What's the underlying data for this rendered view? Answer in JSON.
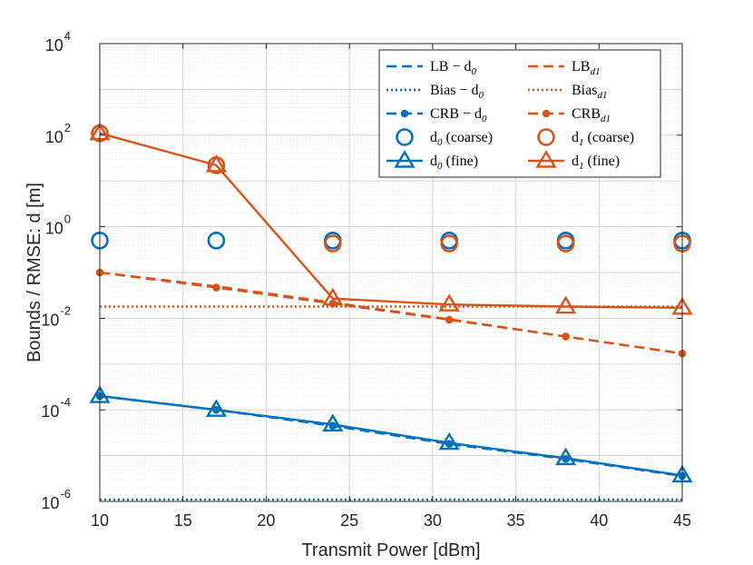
{
  "chart_data": {
    "type": "line",
    "title": "",
    "xlabel": "Transmit Power [dBm]",
    "ylabel": "Bounds / RMSE: d [m]",
    "xlim": [
      10,
      45
    ],
    "ylim": [
      1e-06,
      10000.0
    ],
    "yscale": "log",
    "grid": true,
    "x_ticks": [
      10,
      15,
      20,
      25,
      30,
      35,
      40,
      45
    ],
    "y_tick_labels": [
      {
        "base": "10",
        "exp": "-6",
        "value": 1e-06
      },
      {
        "base": "10",
        "exp": "-4",
        "value": 0.0001
      },
      {
        "base": "10",
        "exp": "-2",
        "value": 0.01
      },
      {
        "base": "10",
        "exp": "0",
        "value": 1
      },
      {
        "base": "10",
        "exp": "2",
        "value": 100
      },
      {
        "base": "10",
        "exp": "4",
        "value": 10000
      }
    ],
    "legend_position": "top-right",
    "colors": {
      "d0": "#0072BD",
      "d1": "#D95319"
    },
    "series": [
      {
        "id": "lb_d0",
        "name": "LB − d",
        "sub": "0",
        "color": "#0072BD",
        "style": "dashed",
        "marker": "none",
        "x": [
          10,
          17,
          24,
          31,
          38,
          45
        ],
        "y": [
          0.0002,
          0.0001,
          4.5e-05,
          1.8e-05,
          8.5e-06,
          3.6e-06
        ]
      },
      {
        "id": "bias_d0",
        "name": "Bias − d",
        "sub": "0",
        "color": "#0072BD",
        "style": "dotted",
        "marker": "none",
        "x": [
          10,
          17,
          24,
          31,
          38,
          45
        ],
        "y": [
          1.1e-06,
          1.1e-06,
          1.1e-06,
          1.1e-06,
          1.1e-06,
          1.1e-06
        ]
      },
      {
        "id": "crb_d0",
        "name": "CRB − d",
        "sub": "0",
        "color": "#0072BD",
        "style": "dashed",
        "marker": "dot",
        "x": [
          10,
          17,
          24,
          31,
          38,
          45
        ],
        "y": [
          0.0002,
          0.0001,
          4.5e-05,
          1.8e-05,
          8.5e-06,
          3.6e-06
        ]
      },
      {
        "id": "d0_coarse",
        "name": "d",
        "sub": "0",
        "suffix": " (coarse)",
        "color": "#0072BD",
        "style": "none",
        "marker": "circle",
        "x": [
          10,
          17,
          24,
          31,
          38,
          45
        ],
        "y": [
          0.5,
          0.5,
          0.5,
          0.5,
          0.5,
          0.5
        ]
      },
      {
        "id": "d0_fine",
        "name": "d",
        "sub": "0",
        "suffix": " (fine)",
        "color": "#0072BD",
        "style": "solid",
        "marker": "triangle",
        "x": [
          10,
          17,
          24,
          31,
          38,
          45
        ],
        "y": [
          0.0002,
          0.0001,
          4.8e-05,
          1.9e-05,
          8.8e-06,
          3.7e-06
        ]
      },
      {
        "id": "lb_d1",
        "name": "LB",
        "sub": "d1",
        "color": "#D95319",
        "style": "dashed",
        "marker": "none",
        "x": [
          10,
          17,
          24,
          31,
          38,
          45
        ],
        "y": [
          0.1,
          0.05,
          0.022,
          0.0095,
          0.004,
          0.0017
        ]
      },
      {
        "id": "bias_d1",
        "name": "Bias",
        "sub": "d1",
        "color": "#D95319",
        "style": "dotted",
        "marker": "none",
        "x": [
          10,
          17,
          24,
          31,
          38,
          45
        ],
        "y": [
          0.018,
          0.018,
          0.018,
          0.018,
          0.018,
          0.018
        ]
      },
      {
        "id": "crb_d1",
        "name": "CRB",
        "sub": "d1",
        "color": "#D95319",
        "style": "dashed",
        "marker": "dot",
        "x": [
          10,
          17,
          24,
          31,
          38,
          45
        ],
        "y": [
          0.1,
          0.047,
          0.021,
          0.0093,
          0.004,
          0.0017
        ]
      },
      {
        "id": "d1_coarse",
        "name": "d",
        "sub": "1",
        "suffix": " (coarse)",
        "color": "#D95319",
        "style": "none",
        "marker": "circle",
        "x": [
          10,
          17,
          24,
          31,
          38,
          45
        ],
        "y": [
          110,
          22,
          0.43,
          0.43,
          0.43,
          0.43
        ]
      },
      {
        "id": "d1_fine",
        "name": "d",
        "sub": "1",
        "suffix": " (fine)",
        "color": "#D95319",
        "style": "solid",
        "marker": "triangle",
        "x": [
          10,
          17,
          24,
          31,
          38,
          45
        ],
        "y": [
          110,
          22,
          0.027,
          0.02,
          0.018,
          0.017
        ]
      }
    ]
  }
}
